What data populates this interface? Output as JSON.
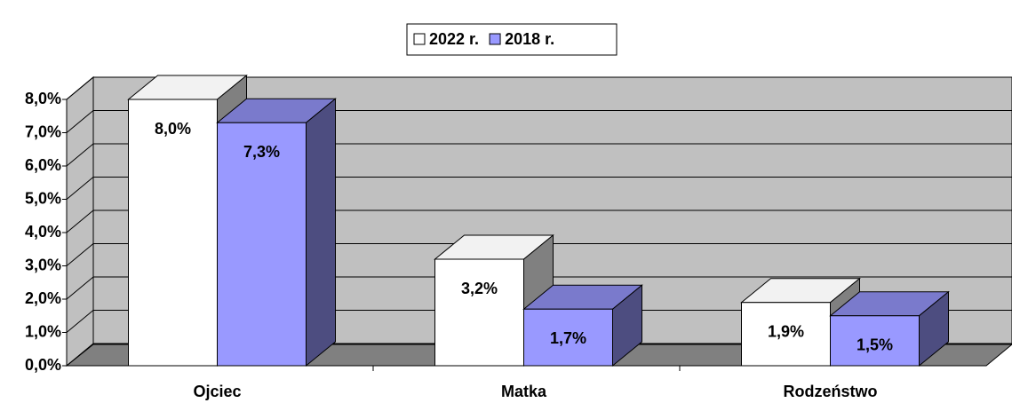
{
  "chart_data": {
    "type": "bar3d",
    "categories": [
      "Ojciec",
      "Matka",
      "Rodzeństwo"
    ],
    "series": [
      {
        "name": "2022 r.",
        "color": "#ffffff",
        "values": [
          8.0,
          3.2,
          1.9
        ],
        "value_labels": [
          "8,0%",
          "3,2%",
          "1,9%"
        ]
      },
      {
        "name": "2018 r.",
        "color": "#9999ff",
        "values": [
          7.3,
          1.7,
          1.5
        ],
        "value_labels": [
          "7,3%",
          "1,7%",
          "1,5%"
        ]
      }
    ],
    "ylim": [
      0,
      8
    ],
    "yticks": [
      {
        "value": 0,
        "label": "0,0%"
      },
      {
        "value": 1,
        "label": "1,0%"
      },
      {
        "value": 2,
        "label": "2,0%"
      },
      {
        "value": 3,
        "label": "3,0%"
      },
      {
        "value": 4,
        "label": "4,0%"
      },
      {
        "value": 5,
        "label": "5,0%"
      },
      {
        "value": 6,
        "label": "6,0%"
      },
      {
        "value": 7,
        "label": "7,0%"
      },
      {
        "value": 8,
        "label": "8,0%"
      }
    ],
    "grid": true,
    "legend": "top"
  }
}
